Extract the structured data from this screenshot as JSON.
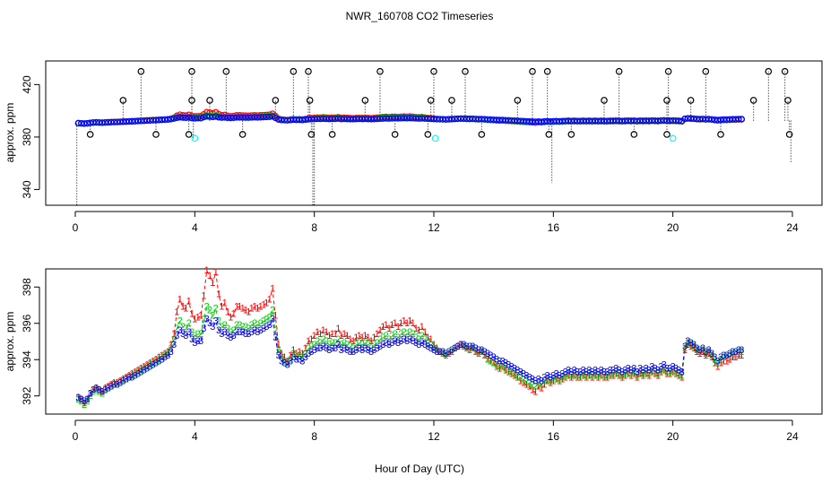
{
  "colors": {
    "series1": "#ff0000",
    "series2": "#00cd00",
    "series3": "#0000ff",
    "spike": "#000000",
    "cyan": "#00ffff",
    "axis": "#000000"
  },
  "chart_data": {
    "title": "NWR_160708  CO2 Timeseries",
    "xlabel": "Hour of Day (UTC)",
    "panels": [
      {
        "id": "top",
        "type": "scatter",
        "ylabel": "approx. ppm",
        "xlim": [
          0,
          24
        ],
        "ylim": [
          328,
          438
        ],
        "xticks": [
          0,
          4,
          8,
          12,
          16,
          20,
          24
        ],
        "yticks": [
          340,
          380,
          420
        ],
        "extra_ytick": 380,
        "baseline_value": 392.5,
        "spikes_high": [
          [
            1.6,
            408
          ],
          [
            2.2,
            430
          ],
          [
            3.9,
            408
          ],
          [
            3.9,
            430
          ],
          [
            4.5,
            408
          ],
          [
            5.05,
            430
          ],
          [
            6.7,
            408
          ],
          [
            7.3,
            430
          ],
          [
            7.8,
            430
          ],
          [
            7.85,
            408
          ],
          [
            9.7,
            408
          ],
          [
            10.2,
            430
          ],
          [
            11.9,
            408
          ],
          [
            12,
            430
          ],
          [
            12.6,
            408
          ],
          [
            13.05,
            430
          ],
          [
            14.8,
            408
          ],
          [
            15.3,
            430
          ],
          [
            15.8,
            430
          ],
          [
            17.7,
            408
          ],
          [
            18.2,
            430
          ],
          [
            19.8,
            408
          ],
          [
            19.85,
            430
          ],
          [
            20.6,
            408
          ],
          [
            21.1,
            430
          ],
          [
            22.7,
            408
          ],
          [
            23.2,
            430
          ],
          [
            23.75,
            430
          ],
          [
            23.85,
            408
          ]
        ],
        "spikes_low": [
          [
            0.5,
            382
          ],
          [
            2.7,
            382
          ],
          [
            3.8,
            382
          ],
          [
            5.6,
            382
          ],
          [
            7.9,
            382
          ],
          [
            8.6,
            382
          ],
          [
            10.7,
            382
          ],
          [
            11.8,
            382
          ],
          [
            13.6,
            382
          ],
          [
            15.85,
            382
          ],
          [
            16.6,
            382
          ],
          [
            18.7,
            382
          ],
          [
            19.8,
            382
          ],
          [
            21.6,
            382
          ],
          [
            23.9,
            382
          ]
        ],
        "drop_lines": [
          [
            0.05,
            328
          ],
          [
            3.95,
            378
          ],
          [
            7.95,
            328
          ],
          [
            8.0,
            328
          ],
          [
            15.95,
            345
          ],
          [
            23.95,
            360
          ]
        ],
        "cyan_points": [
          [
            4.0,
            379
          ],
          [
            12.05,
            379
          ],
          [
            20.0,
            379
          ]
        ]
      },
      {
        "id": "bottom",
        "type": "line",
        "ylabel": "approx. ppm",
        "xlim": [
          0,
          24
        ],
        "ylim": [
          391,
          399
        ],
        "xticks": [
          0,
          4,
          8,
          12,
          16,
          20,
          24
        ],
        "yticks": [
          392,
          394,
          396,
          398
        ],
        "x_start": 0.1,
        "x_step": 0.1,
        "series": [
          {
            "name": "1",
            "color": "red",
            "values": [
              391.9,
              391.8,
              391.6,
              391.8,
              392.1,
              392.3,
              392.4,
              392.3,
              392.2,
              392.4,
              392.5,
              392.6,
              392.7,
              392.7,
              392.8,
              392.9,
              393.0,
              393.1,
              393.2,
              393.3,
              393.4,
              393.5,
              393.6,
              393.7,
              393.8,
              393.9,
              394.0,
              394.1,
              394.2,
              394.3,
              394.4,
              394.8,
              395.4,
              396.6,
              397.3,
              396.9,
              396.8,
              397.2,
              396.5,
              396.2,
              396.3,
              396.4,
              397.5,
              398.9,
              398.6,
              398.2,
              398.8,
              397.6,
              396.9,
              397.1,
              396.6,
              396.3,
              396.5,
              396.9,
              396.9,
              396.8,
              396.7,
              396.6,
              396.8,
              396.9,
              396.8,
              396.9,
              397.0,
              397.1,
              397.3,
              397.9,
              396.4,
              394.8,
              394.3,
              394.1,
              393.9,
              394.2,
              394.5,
              394.3,
              394.4,
              394.3,
              394.6,
              395.0,
              395.1,
              395.3,
              395.5,
              395.4,
              395.6,
              395.5,
              395.3,
              395.4,
              395.4,
              395.7,
              395.3,
              395.4,
              395.3,
              395.1,
              395.0,
              395.2,
              395.3,
              395.2,
              395.3,
              395.2,
              395.0,
              395.2,
              395.4,
              395.6,
              395.8,
              395.9,
              395.7,
              395.9,
              396.0,
              395.8,
              396.0,
              396.1,
              396.0,
              396.1,
              396.0,
              395.7,
              395.6,
              395.8,
              395.5,
              395.2,
              395.1,
              394.8,
              394.6,
              394.4,
              394.3,
              394.2,
              394.3,
              394.4,
              394.6,
              394.7,
              394.8,
              394.7,
              394.6,
              394.5,
              394.6,
              394.4,
              394.3,
              394.4,
              394.2,
              394.0,
              393.9,
              393.8,
              393.6,
              393.5,
              393.6,
              393.4,
              393.3,
              393.2,
              393.1,
              393.0,
              392.8,
              392.7,
              392.6,
              392.5,
              392.3,
              392.2,
              392.5,
              392.4,
              392.6,
              392.8,
              392.7,
              392.8,
              392.9,
              392.8,
              392.9,
              393.0,
              393.1,
              393.0,
              393.1,
              393.0,
              393.0,
              393.1,
              393.0,
              393.1,
              393.0,
              393.1,
              393.0,
              393.1,
              393.0,
              393.0,
              393.1,
              393.1,
              393.2,
              393.1,
              393.0,
              393.1,
              393.2,
              393.1,
              393.2,
              393.0,
              393.2,
              393.1,
              393.2,
              393.1,
              393.3,
              393.2,
              393.1,
              393.3,
              393.4,
              393.2,
              393.2,
              393.3,
              393.2,
              393.1,
              393.0,
              394.5,
              394.8,
              394.7,
              394.6,
              394.4,
              394.3,
              394.4,
              394.2,
              394.3,
              394.1,
              393.8,
              393.6,
              393.8,
              393.9,
              393.9,
              394.0,
              394.1,
              394.1,
              394.2,
              394.2
            ]
          },
          {
            "name": "2",
            "color": "green",
            "values": [
              391.8,
              391.7,
              391.5,
              391.7,
              392.0,
              392.2,
              392.3,
              392.2,
              392.1,
              392.3,
              392.4,
              392.5,
              392.6,
              392.6,
              392.7,
              392.8,
              392.9,
              393.0,
              393.1,
              393.2,
              393.3,
              393.4,
              393.5,
              393.6,
              393.7,
              393.8,
              393.9,
              394.0,
              394.1,
              394.2,
              394.3,
              394.6,
              395.1,
              395.7,
              396.1,
              395.8,
              395.7,
              396.0,
              395.5,
              395.3,
              395.4,
              395.4,
              396.2,
              396.9,
              396.7,
              396.4,
              396.8,
              396.1,
              395.8,
              395.9,
              395.7,
              395.5,
              395.6,
              395.9,
              395.9,
              395.8,
              395.8,
              395.7,
              395.9,
              396.0,
              395.9,
              396.0,
              396.1,
              396.2,
              396.3,
              396.7,
              395.6,
              394.4,
              394.1,
              393.9,
              393.8,
              394.0,
              394.3,
              394.1,
              394.2,
              394.1,
              394.3,
              394.6,
              394.7,
              394.8,
              395.0,
              394.9,
              395.1,
              395.0,
              394.8,
              394.9,
              394.9,
              395.1,
              394.8,
              394.9,
              394.8,
              394.7,
              394.6,
              394.8,
              394.9,
              394.8,
              394.9,
              394.8,
              394.6,
              394.8,
              394.9,
              395.1,
              395.2,
              395.3,
              395.1,
              395.3,
              395.4,
              395.2,
              395.4,
              395.5,
              395.4,
              395.5,
              395.4,
              395.2,
              395.1,
              395.3,
              395.1,
              394.9,
              394.8,
              394.6,
              394.5,
              394.4,
              394.3,
              394.2,
              394.3,
              394.4,
              394.6,
              394.7,
              394.8,
              394.7,
              394.6,
              394.5,
              394.6,
              394.4,
              394.3,
              394.4,
              394.2,
              394.0,
              393.9,
              393.8,
              393.7,
              393.6,
              393.7,
              393.5,
              393.4,
              393.3,
              393.2,
              393.1,
              393.0,
              392.9,
              392.8,
              392.7,
              392.6,
              392.5,
              392.7,
              392.6,
              392.8,
              392.9,
              392.8,
              392.9,
              393.0,
              392.9,
              393.0,
              393.1,
              393.2,
              393.1,
              393.2,
              393.1,
              393.1,
              393.2,
              393.1,
              393.2,
              393.1,
              393.2,
              393.1,
              393.2,
              393.1,
              393.1,
              393.2,
              393.2,
              393.3,
              393.2,
              393.1,
              393.2,
              393.3,
              393.2,
              393.3,
              393.1,
              393.3,
              393.2,
              393.3,
              393.2,
              393.4,
              393.3,
              393.2,
              393.4,
              393.5,
              393.3,
              393.3,
              393.4,
              393.3,
              393.2,
              393.1,
              394.6,
              394.9,
              394.8,
              394.7,
              394.5,
              394.4,
              394.5,
              394.3,
              394.4,
              394.2,
              394.0,
              393.8,
              394.0,
              394.1,
              394.1,
              394.2,
              394.3,
              394.3,
              394.4,
              394.4
            ]
          },
          {
            "name": "3",
            "color": "blue",
            "values": [
              391.9,
              391.8,
              391.7,
              391.8,
              392.1,
              392.3,
              392.4,
              392.3,
              392.2,
              392.3,
              392.4,
              392.5,
              392.6,
              392.6,
              392.7,
              392.8,
              392.9,
              393.0,
              393.0,
              393.1,
              393.2,
              393.3,
              393.4,
              393.5,
              393.6,
              393.7,
              393.8,
              393.9,
              394.0,
              394.1,
              394.2,
              394.4,
              394.8,
              395.3,
              395.6,
              395.4,
              395.3,
              395.5,
              395.1,
              394.9,
              395.0,
              395.0,
              395.7,
              396.2,
              396.0,
              395.8,
              396.1,
              395.6,
              395.4,
              395.5,
              395.3,
              395.2,
              395.3,
              395.5,
              395.5,
              395.5,
              395.4,
              395.4,
              395.5,
              395.6,
              395.5,
              395.6,
              395.7,
              395.8,
              395.9,
              396.2,
              395.2,
              394.2,
              393.9,
              393.8,
              393.7,
              393.9,
              394.1,
              394.0,
              394.0,
              393.9,
              394.1,
              394.3,
              394.4,
              394.5,
              394.6,
              394.6,
              394.7,
              394.6,
              394.5,
              394.6,
              394.6,
              394.8,
              394.5,
              394.6,
              394.5,
              394.4,
              394.4,
              394.5,
              394.6,
              394.5,
              394.6,
              394.5,
              394.4,
              394.5,
              394.6,
              394.7,
              394.8,
              394.9,
              394.8,
              394.9,
              395.0,
              394.9,
              395.0,
              395.1,
              395.0,
              395.1,
              395.0,
              394.9,
              394.8,
              394.9,
              394.8,
              394.7,
              394.6,
              394.5,
              394.4,
              394.4,
              394.4,
              394.3,
              394.4,
              394.5,
              394.6,
              394.7,
              394.8,
              394.8,
              394.7,
              394.7,
              394.7,
              394.6,
              394.5,
              394.5,
              394.4,
              394.3,
              394.2,
              394.1,
              394.0,
              393.9,
              393.9,
              393.8,
              393.7,
              393.6,
              393.5,
              393.4,
              393.3,
              393.2,
              393.1,
              393.0,
              392.9,
              392.8,
              392.9,
              392.8,
              393.0,
              393.1,
              393.0,
              393.1,
              393.2,
              393.1,
              393.2,
              393.3,
              393.4,
              393.3,
              393.4,
              393.3,
              393.3,
              393.4,
              393.3,
              393.4,
              393.3,
              393.4,
              393.3,
              393.4,
              393.3,
              393.3,
              393.4,
              393.4,
              393.5,
              393.4,
              393.3,
              393.4,
              393.5,
              393.4,
              393.5,
              393.3,
              393.5,
              393.4,
              393.5,
              393.4,
              393.6,
              393.5,
              393.4,
              393.6,
              393.7,
              393.5,
              393.5,
              393.6,
              393.5,
              393.4,
              393.3,
              394.7,
              395.0,
              394.9,
              394.8,
              394.6,
              394.5,
              394.6,
              394.4,
              394.5,
              394.3,
              394.1,
              393.9,
              394.1,
              394.2,
              394.2,
              394.3,
              394.4,
              394.4,
              394.5,
              394.5
            ]
          }
        ]
      }
    ]
  }
}
